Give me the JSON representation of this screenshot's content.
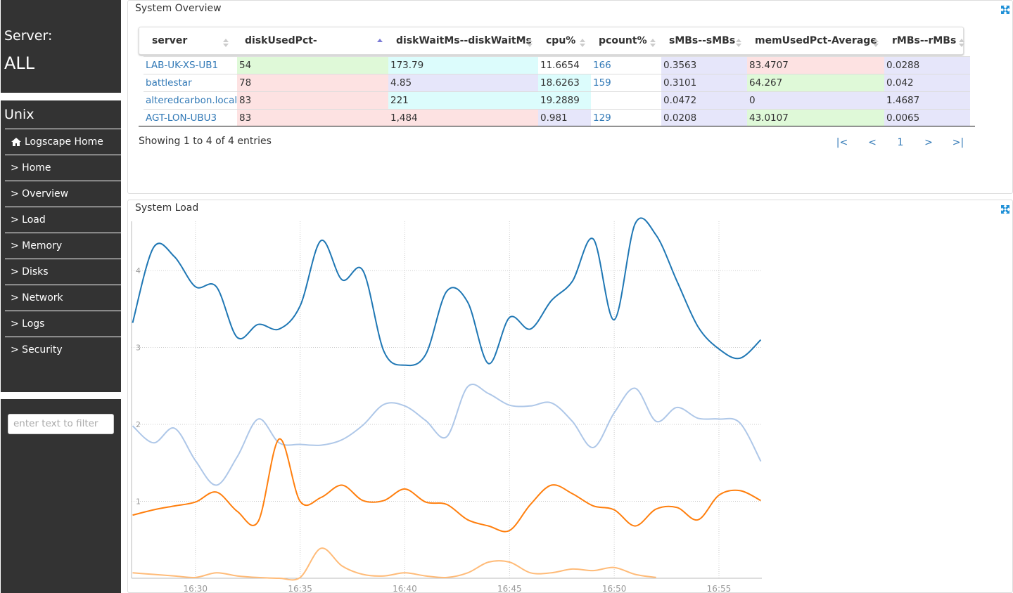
{
  "sidebar": {
    "server_label": "Server:",
    "server_value": "ALL",
    "section": "Unix",
    "nav": [
      "Logscape Home",
      "> Home",
      "> Overview",
      "> Load",
      "> Memory",
      "> Disks",
      "> Network",
      "> Logs",
      "> Security"
    ],
    "filter_placeholder": "enter text to filter"
  },
  "overview": {
    "title": "System Overview",
    "table": {
      "headers": [
        "server",
        "diskUsedPct-diskUsedPct",
        "diskWaitMs--diskWaitMs",
        "cpu%",
        "pcount%",
        "sMBs--sMBs",
        "memUsedPct-Average",
        "rMBs--rMBs"
      ],
      "rows": [
        [
          "LAB-UK-XS-UB1",
          "54",
          "173.79",
          "11.6654",
          "166",
          "0.3563",
          "83.4707",
          "0.0288"
        ],
        [
          "battlestar",
          "78",
          "4.85",
          "18.6263",
          "159",
          "0.3101",
          "64.267",
          "0.042"
        ],
        [
          "alteredcarbon.local",
          "83",
          "221",
          "19.2889",
          null,
          "0.0472",
          "0",
          "1.4687"
        ],
        [
          "AGT-LON-UBU3",
          "83",
          "1,484",
          "0.981",
          "129",
          "0.0208",
          "43.0107",
          "0.0065"
        ]
      ],
      "colors": [
        [
          null,
          "#dff9d8",
          "#dcfcfc",
          null,
          null,
          "#e6e6fa",
          "#fde2e2",
          "#e6e6fa"
        ],
        [
          null,
          "#fde2e2",
          "#e6e6fa",
          "#dcfcfc",
          null,
          "#e6e6fa",
          "#dff9d8",
          "#e6e6fa"
        ],
        [
          null,
          "#fde2e2",
          "#dcfcfc",
          "#dcfcfc",
          null,
          "#e6e6fa",
          "#e6e6fa",
          "#e6e6fa"
        ],
        [
          null,
          "#fde2e2",
          "#fde2e2",
          "#e6e6fa",
          null,
          "#e6e6fa",
          "#dff9d8",
          "#e6e6fa"
        ]
      ]
    },
    "info": "Showing 1 to 4 of 4 entries",
    "pagination": [
      "|<",
      "<",
      "1",
      ">",
      ">|"
    ]
  },
  "chart_data": {
    "type": "line",
    "title": "System Load",
    "x": [
      27,
      28,
      29,
      30,
      31,
      32,
      33,
      34,
      35,
      36,
      37,
      38,
      39,
      40,
      41,
      42,
      43,
      44,
      45,
      46,
      47,
      48,
      49,
      50,
      51,
      52,
      53,
      54,
      55,
      56,
      57
    ],
    "xlim": [
      26.95,
      57.05
    ],
    "xticks": [
      {
        "value": 30,
        "label": "16:30"
      },
      {
        "value": 35,
        "label": "16:35"
      },
      {
        "value": 40,
        "label": "16:40"
      },
      {
        "value": 45,
        "label": "16:45"
      },
      {
        "value": 50,
        "label": "16:50"
      },
      {
        "value": 55,
        "label": "16:55"
      }
    ],
    "ylim": [
      0,
      4.64
    ],
    "yticks": [
      1,
      2,
      3,
      4
    ],
    "grid": true,
    "series": [
      {
        "color": "#1f77b4",
        "values": [
          3.32,
          4.3,
          4.18,
          3.79,
          3.79,
          3.13,
          3.3,
          3.24,
          3.54,
          4.39,
          3.88,
          4.0,
          2.95,
          2.77,
          2.91,
          3.73,
          3.59,
          2.79,
          3.39,
          3.24,
          3.61,
          3.86,
          4.41,
          3.36,
          4.61,
          4.46,
          3.86,
          3.27,
          2.98,
          2.86,
          3.1
        ]
      },
      {
        "color": "#aec7e8",
        "values": [
          1.98,
          1.76,
          1.95,
          1.53,
          1.21,
          1.58,
          2.07,
          1.76,
          1.74,
          1.73,
          1.8,
          1.99,
          2.26,
          2.24,
          2.05,
          1.84,
          2.49,
          2.4,
          2.25,
          2.24,
          2.28,
          2.04,
          1.7,
          2.15,
          2.47,
          2.04,
          2.22,
          2.08,
          2.07,
          2.02,
          1.52
        ]
      },
      {
        "color": "#ff7f0e",
        "values": [
          0.82,
          0.89,
          0.94,
          0.99,
          1.12,
          0.87,
          0.74,
          1.81,
          1.0,
          1.05,
          1.21,
          1.01,
          1.01,
          1.16,
          0.99,
          0.96,
          0.76,
          0.68,
          0.62,
          0.96,
          1.21,
          1.1,
          0.94,
          0.89,
          0.68,
          0.9,
          0.92,
          0.76,
          1.08,
          1.14,
          1.01
        ]
      },
      {
        "color": "#ffbb78",
        "values": [
          0.07,
          0.05,
          0.03,
          0.01,
          0.07,
          0.03,
          0.01,
          0.0,
          0.01,
          0.39,
          0.16,
          0.05,
          0.03,
          0.07,
          0.03,
          0.01,
          0.07,
          0.21,
          0.21,
          0.07,
          0.07,
          0.12,
          0.1,
          0.14,
          0.05,
          0.01,
          null,
          null,
          null,
          null,
          null
        ]
      }
    ]
  }
}
